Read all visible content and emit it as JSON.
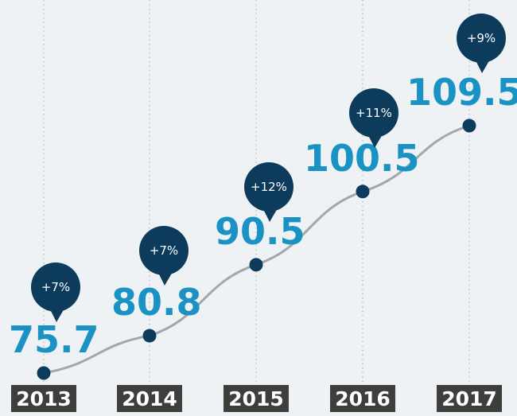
{
  "colors": {
    "background": "#eef2f4",
    "line": "#a3a7aa",
    "marker": "#0c3b5c",
    "badge": "#0c3b5c",
    "badge_text": "#ffffff",
    "value_text": "#1a92c4",
    "year_box": "#3e3e3c",
    "year_text": "#ffffff",
    "grid": "#b6bcc0"
  },
  "chart_data": {
    "type": "line",
    "title": "",
    "xlabel": "",
    "ylabel": "",
    "categories": [
      "2013",
      "2014",
      "2015",
      "2016",
      "2017"
    ],
    "series": [
      {
        "values": [
          75.7,
          80.8,
          90.5,
          100.5,
          109.5
        ],
        "value_labels": [
          "75.7",
          "80.8",
          "90.5",
          "100.5",
          "109.5"
        ],
        "growth_labels": [
          "+7%",
          "+7%",
          "+12%",
          "+11%",
          "+9%"
        ]
      }
    ],
    "ylim": [
      75.7,
      109.5
    ],
    "grid": "vertical-dotted",
    "legend": "none"
  }
}
